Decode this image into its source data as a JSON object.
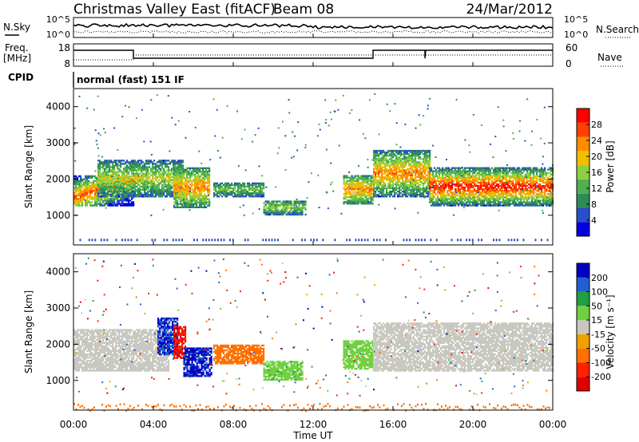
{
  "header": {
    "title": "Christmas Valley East (fitACF)",
    "beam": "Beam 08",
    "date": "24/Mar/2012"
  },
  "noise_panel": {
    "left_label": "N.Sky",
    "right_label": "N.Search",
    "ticks": [
      "10^5",
      "10^0"
    ]
  },
  "freq_panel": {
    "left_label_1": "Freq.",
    "left_label_2": "[MHz]",
    "right_label": "Nave",
    "left_ticks": [
      "18",
      "8"
    ],
    "right_ticks": [
      "60",
      "0"
    ]
  },
  "cpid": {
    "label": "CPID",
    "mode": "normal (fast) 151 IF"
  },
  "colors": {
    "power_scale": [
      "#0000e0",
      "#2850c8",
      "#2e8b57",
      "#50b050",
      "#90d040",
      "#f0c000",
      "#ff8c00",
      "#ff4000",
      "#ff0000"
    ],
    "velocity_scale": [
      "#0000c0",
      "#2060d0",
      "#20a040",
      "#70d040",
      "#c8c8c0",
      "#f0a000",
      "#ff7000",
      "#ff2000",
      "#e00000"
    ]
  },
  "chart_data": [
    {
      "type": "heatmap",
      "name": "power",
      "ylabel": "Slant Range [km]",
      "ylim": [
        180,
        4500
      ],
      "yticks": [
        1000,
        2000,
        3000,
        4000
      ],
      "xlim": [
        0,
        24
      ],
      "colorbar": {
        "label": "Power [dB]",
        "range": [
          0,
          32
        ],
        "ticks": [
          "28",
          "24",
          "20",
          "16",
          "12",
          "8",
          "4"
        ]
      },
      "echo_bands": [
        {
          "t0": 0.0,
          "t1": 3.0,
          "r0": 1250,
          "r1": 2100,
          "p0": 26,
          "p1": 8
        },
        {
          "t0": 1.2,
          "t1": 5.5,
          "r0": 1500,
          "r1": 2500,
          "p0": 18,
          "p1": 6
        },
        {
          "t0": 5.0,
          "t1": 6.8,
          "r0": 1200,
          "r1": 2300,
          "p0": 24,
          "p1": 8
        },
        {
          "t0": 7.0,
          "t1": 9.5,
          "r0": 1500,
          "r1": 1900,
          "p0": 14,
          "p1": 6
        },
        {
          "t0": 9.5,
          "t1": 11.6,
          "r0": 1000,
          "r1": 1400,
          "p0": 16,
          "p1": 6
        },
        {
          "t0": 13.5,
          "t1": 15.0,
          "r0": 1300,
          "r1": 2100,
          "p0": 24,
          "p1": 8
        },
        {
          "t0": 15.0,
          "t1": 17.8,
          "r0": 1500,
          "r1": 2800,
          "p0": 24,
          "p1": 6
        },
        {
          "t0": 17.8,
          "t1": 24.0,
          "r0": 1250,
          "r1": 2300,
          "p0": 30,
          "p1": 6
        }
      ],
      "ground_band": {
        "r0": 180,
        "r1": 350,
        "p": 4
      }
    },
    {
      "type": "heatmap",
      "name": "velocity",
      "ylabel": "Slant Range [km]",
      "xlabel": "Time UT",
      "ylim": [
        180,
        4500
      ],
      "yticks": [
        1000,
        2000,
        3000,
        4000
      ],
      "xlim": [
        0,
        24
      ],
      "xticks": [
        "00:00",
        "04:00",
        "08:00",
        "12:00",
        "16:00",
        "20:00",
        "00:00"
      ],
      "colorbar": {
        "label": "Velocity [m s⁻¹]",
        "range": [
          -250,
          250
        ],
        "ticks": [
          "200",
          "100",
          "50",
          "15",
          "-15",
          "-50",
          "-100",
          "-200"
        ]
      },
      "echo_bands": [
        {
          "t0": 0.0,
          "t1": 4.8,
          "r0": 1250,
          "r1": 2400,
          "v": 0
        },
        {
          "t0": 4.2,
          "t1": 5.2,
          "r0": 1700,
          "r1": 2700,
          "v": 200
        },
        {
          "t0": 5.0,
          "t1": 5.6,
          "r0": 1600,
          "r1": 2500,
          "v": -200
        },
        {
          "t0": 5.5,
          "t1": 6.9,
          "r0": 1100,
          "r1": 1900,
          "v": 220
        },
        {
          "t0": 7.0,
          "t1": 9.5,
          "r0": 1450,
          "r1": 1950,
          "v": -70
        },
        {
          "t0": 9.5,
          "t1": 11.5,
          "r0": 1000,
          "r1": 1500,
          "v": 40
        },
        {
          "t0": 13.5,
          "t1": 15.0,
          "r0": 1300,
          "r1": 2100,
          "v": 30
        },
        {
          "t0": 15.0,
          "t1": 24.0,
          "r0": 1250,
          "r1": 2600,
          "v": 0
        }
      ],
      "ground_band": {
        "r0": 180,
        "r1": 380,
        "v": -70
      }
    }
  ]
}
